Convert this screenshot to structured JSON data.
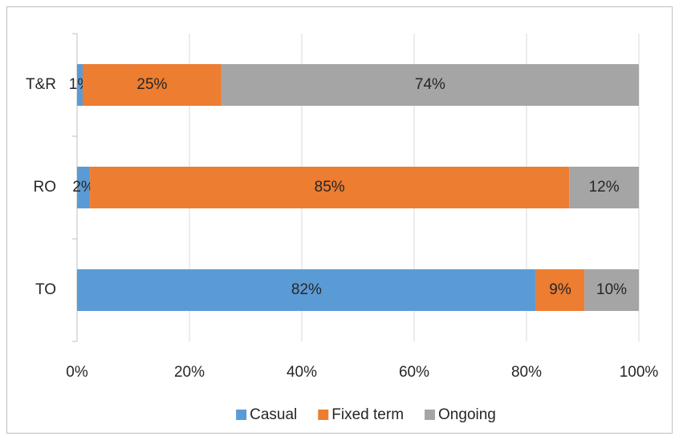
{
  "chart_data": {
    "type": "stacked-bar-horizontal",
    "categories": [
      "T&R",
      "RO",
      "TO"
    ],
    "series": [
      {
        "name": "Casual",
        "color": "#5b9bd5",
        "values": [
          1,
          2.3,
          81.7
        ],
        "value_labels": [
          "1%",
          "2%",
          "82%"
        ]
      },
      {
        "name": "Fixed term",
        "color": "#ed7d31",
        "values": [
          24.7,
          85.3,
          8.6
        ],
        "value_labels": [
          "25%",
          "85%",
          "9%"
        ]
      },
      {
        "name": "Ongoing",
        "color": "#a5a5a5",
        "values": [
          74.3,
          12.4,
          9.7
        ],
        "value_labels": [
          "74%",
          "12%",
          "10%"
        ]
      }
    ],
    "xlim": [
      0,
      100
    ],
    "xticks": [
      {
        "value": 0,
        "label": "0%"
      },
      {
        "value": 20,
        "label": "20%"
      },
      {
        "value": 40,
        "label": "40%"
      },
      {
        "value": 60,
        "label": "60%"
      },
      {
        "value": 80,
        "label": "80%"
      },
      {
        "value": 100,
        "label": "100%"
      }
    ],
    "grid": true,
    "legend": "bottom"
  }
}
